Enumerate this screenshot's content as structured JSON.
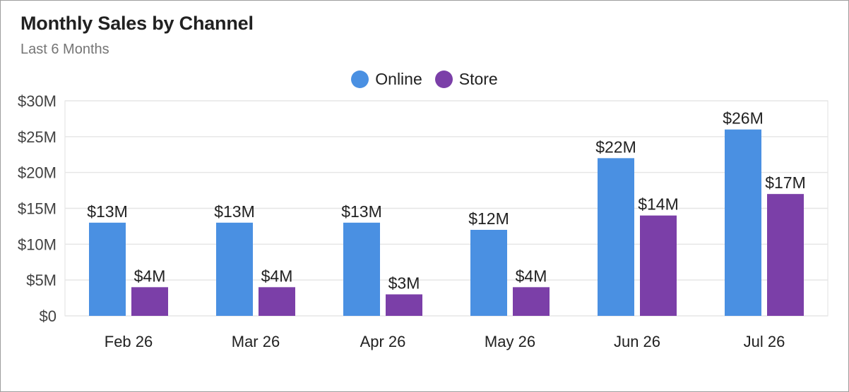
{
  "header": {
    "title": "Monthly Sales by Channel",
    "subtitle": "Last 6 Months"
  },
  "legend": [
    {
      "label": "Online",
      "color": "#4a90e2"
    },
    {
      "label": "Store",
      "color": "#7b3fa8"
    }
  ],
  "chart_data": {
    "type": "bar",
    "title": "Monthly Sales by Channel",
    "subtitle": "Last 6 Months",
    "categories": [
      "Feb 26",
      "Mar 26",
      "Apr 26",
      "May 26",
      "Jun 26",
      "Jul 26"
    ],
    "series": [
      {
        "name": "Online",
        "color": "#4a90e2",
        "values": [
          13,
          13,
          13,
          12,
          22,
          26
        ],
        "labels": [
          "$13M",
          "$13M",
          "$13M",
          "$12M",
          "$22M",
          "$26M"
        ]
      },
      {
        "name": "Store",
        "color": "#7b3fa8",
        "values": [
          4,
          4,
          3,
          4,
          14,
          17
        ],
        "labels": [
          "$4M",
          "$4M",
          "$3M",
          "$4M",
          "$14M",
          "$17M"
        ]
      }
    ],
    "y_ticks": [
      0,
      5,
      10,
      15,
      20,
      25,
      30
    ],
    "y_tick_labels": [
      "$0",
      "$5M",
      "$10M",
      "$15M",
      "$20M",
      "$25M",
      "$30M"
    ],
    "ylim": [
      0,
      30
    ],
    "xlabel": "",
    "ylabel": "",
    "grid": true,
    "legend_position": "top-center"
  }
}
